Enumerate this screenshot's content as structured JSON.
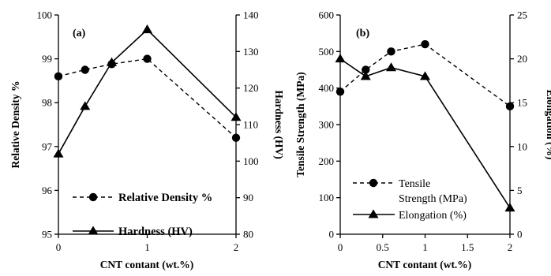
{
  "chart_data": [
    {
      "type": "line",
      "panel_label": "(a)",
      "xlabel": "CNT contant (wt.%)",
      "x_ticks": [
        "0",
        "1",
        "2"
      ],
      "xlim": [
        0,
        2
      ],
      "ylabel_left": "Relative Density %",
      "ylim_left": [
        95,
        100
      ],
      "y_ticks_left": [
        "95",
        "96",
        "97",
        "98",
        "99",
        "100"
      ],
      "ylabel_right": "Hardness (HV)",
      "ylim_right": [
        80,
        140
      ],
      "y_ticks_right": [
        "80",
        "90",
        "100",
        "110",
        "120",
        "130",
        "140"
      ],
      "grid": false,
      "legend_position": "bottom-center",
      "series": [
        {
          "name": "Relative Density %",
          "axis": "left",
          "style": "dashed",
          "marker": "circle",
          "x": [
            0,
            0.3,
            0.6,
            1,
            2
          ],
          "values": [
            98.6,
            98.75,
            98.88,
            99.0,
            97.2
          ]
        },
        {
          "name": "Hardness (HV)",
          "axis": "right",
          "style": "solid",
          "marker": "triangle",
          "x": [
            0,
            0.3,
            0.6,
            1,
            2
          ],
          "values": [
            102,
            115,
            127,
            136,
            112
          ]
        }
      ]
    },
    {
      "type": "line",
      "panel_label": "(b)",
      "xlabel": "CNT contant (wt.%)",
      "x_ticks": [
        "0",
        "0.5",
        "1",
        "1.5",
        "2"
      ],
      "xlim": [
        0,
        2
      ],
      "ylabel_left": "Tensile Strength (MPa)",
      "ylim_left": [
        0,
        600
      ],
      "y_ticks_left": [
        "0",
        "100",
        "200",
        "300",
        "400",
        "500",
        "600"
      ],
      "ylabel_right": "Elongation (%)",
      "ylim_right": [
        0,
        25
      ],
      "y_ticks_right": [
        "0",
        "5",
        "10",
        "15",
        "20",
        "25"
      ],
      "grid": false,
      "legend_position": "bottom-left",
      "series": [
        {
          "name": "Tensile Strength (MPa)",
          "legend_lines": [
            "Tensile",
            "Strength (MPa)"
          ],
          "axis": "left",
          "style": "dashed",
          "marker": "circle",
          "x": [
            0,
            0.3,
            0.6,
            1,
            2
          ],
          "values": [
            390,
            450,
            500,
            520,
            350
          ]
        },
        {
          "name": "Elongation (%)",
          "axis": "right",
          "style": "solid",
          "marker": "triangle",
          "x": [
            0,
            0.3,
            0.6,
            1,
            2
          ],
          "values": [
            20,
            18,
            19,
            18,
            3
          ]
        }
      ]
    }
  ]
}
